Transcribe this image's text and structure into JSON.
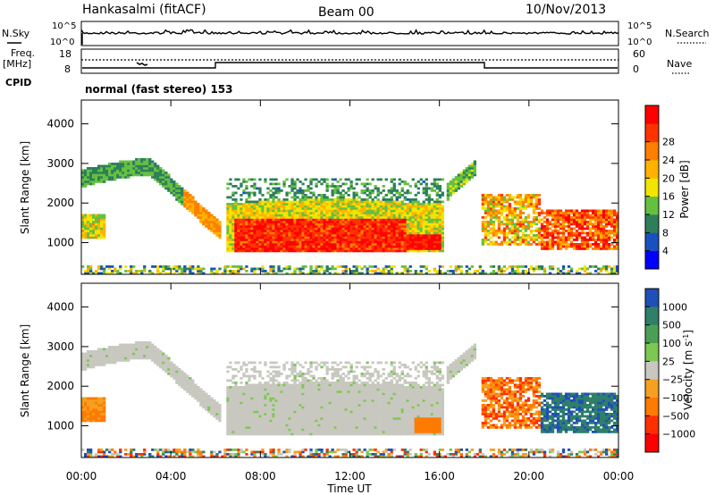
{
  "header": {
    "station": "Hankasalmi (fitACF)",
    "beam": "Beam 00",
    "date": "10/Nov/2013"
  },
  "strip": {
    "nsky_label": "N.Sky",
    "nsky_ticks": [
      "10^5",
      "10^0"
    ],
    "nsearch_label": "N.Search",
    "nsearch_ticks": [
      "10^5",
      "10^0"
    ],
    "freq_label": "Freq.",
    "freq_unit": "[MHz]",
    "freq_ticks": [
      "18",
      "8"
    ],
    "nave_label": "Nave",
    "nave_ticks": [
      "60",
      "0"
    ],
    "cpid_label": "CPID",
    "cpid_value": "normal (fast stereo) 153"
  },
  "chart_data": [
    {
      "type": "heatmap",
      "name": "power",
      "ylabel": "Slant Range [km]",
      "ylim": [
        200,
        4600
      ],
      "yticks": [
        "1000",
        "2000",
        "3000",
        "4000"
      ],
      "xlim": [
        0,
        24
      ],
      "colorbar": {
        "label": "Power [dB]",
        "ticks": [
          "4",
          "8",
          "12",
          "16",
          "20",
          "24",
          "28"
        ],
        "colors": [
          "#0000ff",
          "#1a4fc0",
          "#2d7f5a",
          "#66c040",
          "#f2e600",
          "#ffb300",
          "#ff7f00",
          "#ff3300",
          "#ff0000"
        ]
      }
    },
    {
      "type": "heatmap",
      "name": "velocity",
      "ylabel": "Slant Range [km]",
      "ylim": [
        200,
        4600
      ],
      "yticks": [
        "1000",
        "2000",
        "3000",
        "4000"
      ],
      "xlim": [
        0,
        24
      ],
      "xlabel": "Time UT",
      "xticks": [
        "00:00",
        "04:00",
        "08:00",
        "12:00",
        "16:00",
        "20:00",
        "00:00"
      ],
      "colorbar": {
        "label": "Velocity [m s",
        "label_sup": "-1",
        "label_end": "]",
        "ticks": [
          "1000",
          "500",
          "100",
          "25",
          "−25",
          "−100",
          "−500",
          "−1000"
        ],
        "colors": [
          "#1f4fb8",
          "#2f7f6a",
          "#4a9f55",
          "#7cc850",
          "#c8c8c0",
          "#f5a020",
          "#ff7a00",
          "#ff3000",
          "#ff0000"
        ]
      }
    }
  ],
  "palette": {
    "power": [
      "#1a4fc0",
      "#2d7f5a",
      "#66c040",
      "#f2e600",
      "#ffb300",
      "#ff7f00",
      "#ff3300",
      "#ff0000"
    ],
    "velocity_ground": "#c8c8c0",
    "velocity": [
      "#1f4fb8",
      "#2f7f6a",
      "#7cc850",
      "#c8c8c0",
      "#f5a020",
      "#ff7a00",
      "#ff3000"
    ]
  }
}
